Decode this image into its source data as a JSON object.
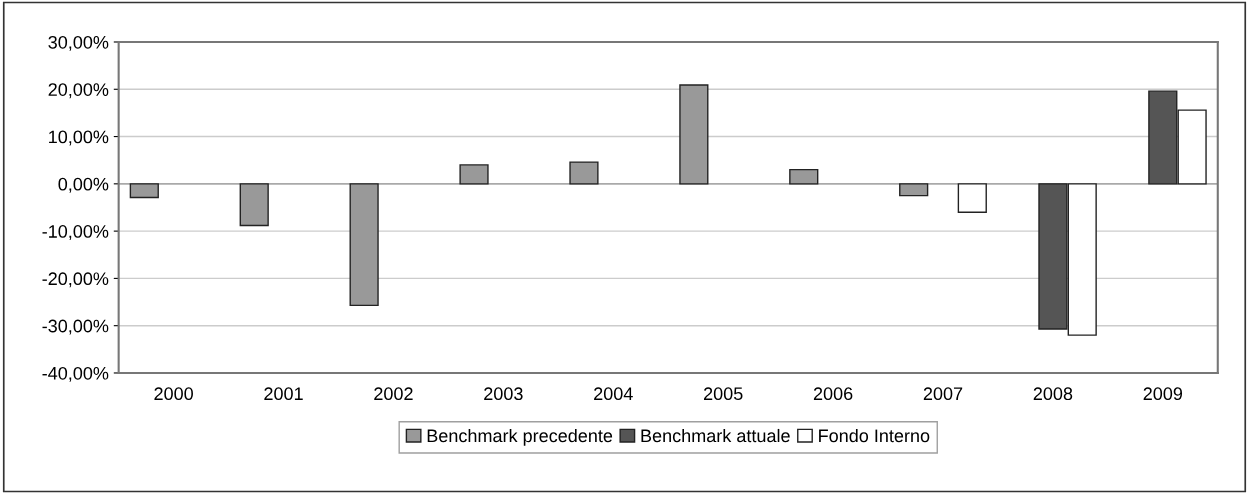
{
  "chart_data": {
    "type": "bar",
    "categories": [
      "2000",
      "2001",
      "2002",
      "2003",
      "2004",
      "2005",
      "2006",
      "2007",
      "2008",
      "2009"
    ],
    "series": [
      {
        "name": "Benchmark precedente",
        "color": "#999999",
        "values": [
          -2.9,
          -8.8,
          -25.7,
          4.0,
          4.6,
          20.9,
          3.0,
          -2.5,
          null,
          null
        ]
      },
      {
        "name": "Benchmark attuale",
        "color": "#555555",
        "values": [
          null,
          null,
          null,
          null,
          null,
          null,
          null,
          null,
          -30.7,
          19.6
        ]
      },
      {
        "name": "Fondo Interno",
        "color": "#ffffff",
        "values": [
          null,
          null,
          null,
          null,
          null,
          null,
          null,
          -6.0,
          -32.0,
          15.6
        ]
      }
    ],
    "ylim": [
      -40,
      30
    ],
    "yticks": [
      {
        "value": -40,
        "label": "-40,00%"
      },
      {
        "value": -30,
        "label": "-30,00%"
      },
      {
        "value": -20,
        "label": "-20,00%"
      },
      {
        "value": -10,
        "label": "-10,00%"
      },
      {
        "value": 0,
        "label": "0,00%"
      },
      {
        "value": 10,
        "label": "10,00%"
      },
      {
        "value": 20,
        "label": "20,00%"
      },
      {
        "value": 30,
        "label": "30,00%"
      }
    ],
    "grid": "y",
    "legend": "bottom"
  }
}
